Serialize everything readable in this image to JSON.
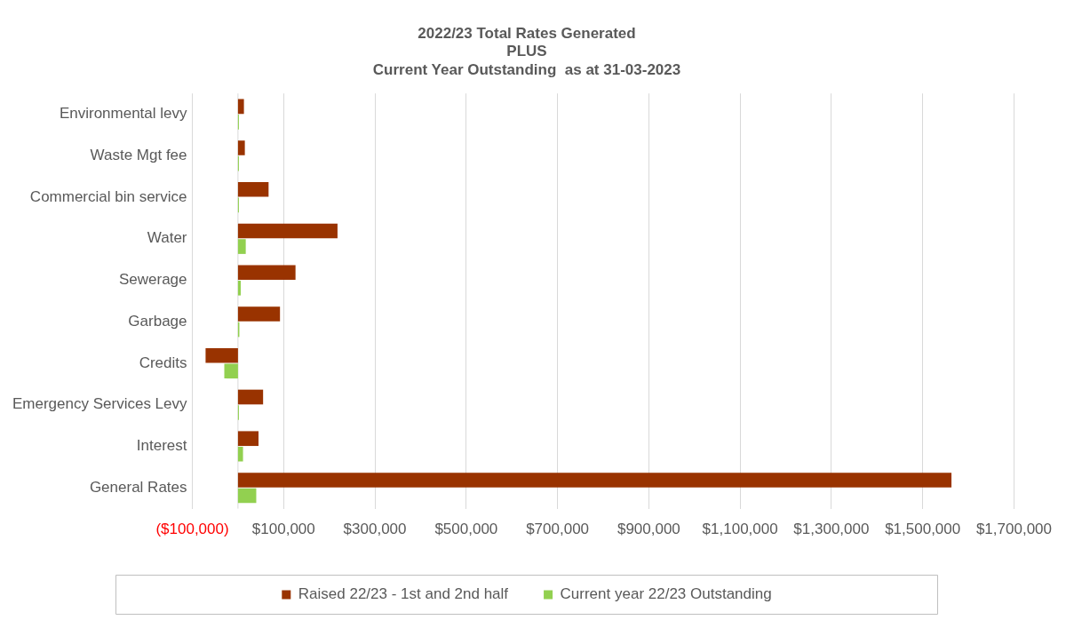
{
  "chart_data": {
    "type": "bar",
    "orientation": "horizontal",
    "title": "2022/23 Total Rates Generated\nPLUS\nCurrent Year Outstanding  as at 31-03-2023",
    "categories": [
      "Environmental levy",
      "Waste Mgt fee",
      "Commercial bin service",
      "Water",
      "Sewerage",
      "Garbage",
      "Credits",
      "Emergency Services Levy",
      "Interest",
      "General Rates"
    ],
    "series": [
      {
        "name": "Raised 22/23 - 1st and 2nd half",
        "color": "#993300",
        "values": [
          13000,
          15000,
          67000,
          218000,
          126000,
          92000,
          -71000,
          55000,
          45000,
          1563000
        ]
      },
      {
        "name": "Current year 22/23 Outstanding",
        "color": "#92d050",
        "values": [
          2000,
          2000,
          2000,
          17000,
          6000,
          3000,
          -30000,
          2000,
          11000,
          40000
        ]
      }
    ],
    "xlim": [
      -100000,
      1700000
    ],
    "xticks": [
      {
        "value": -100000,
        "label": "($100,000)"
      },
      {
        "value": 100000,
        "label": "$100,000"
      },
      {
        "value": 300000,
        "label": "$300,000"
      },
      {
        "value": 500000,
        "label": "$500,000"
      },
      {
        "value": 700000,
        "label": "$700,000"
      },
      {
        "value": 900000,
        "label": "$900,000"
      },
      {
        "value": 1100000,
        "label": "$1,100,000"
      },
      {
        "value": 1300000,
        "label": "$1,300,000"
      },
      {
        "value": 1500000,
        "label": "$1,500,000"
      },
      {
        "value": 1700000,
        "label": "$1,700,000"
      }
    ],
    "grid": "x",
    "legend": "bottom"
  }
}
